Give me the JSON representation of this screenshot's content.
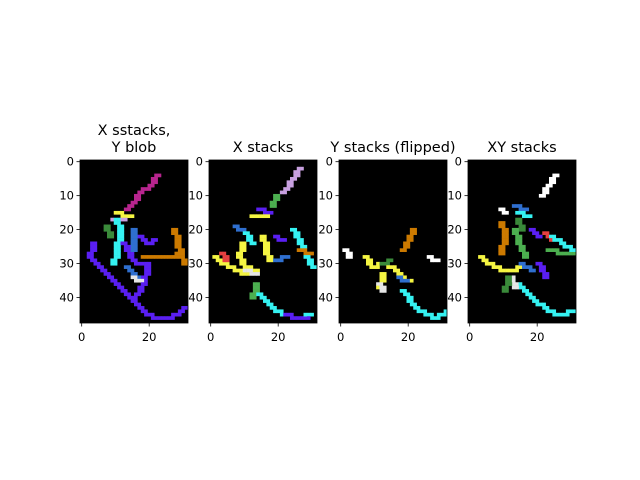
{
  "chart_data": [
    {
      "type": "heatmap",
      "title": "X sstacks,\nY blob",
      "rows": 48,
      "cols": 32,
      "xticks": [
        0,
        20
      ],
      "yticks": [
        0,
        10,
        20,
        30,
        40
      ],
      "background": "#000000",
      "strokes": [
        {
          "color": "#b8258f",
          "points": [
            [
              22,
              4
            ],
            [
              20,
              7
            ],
            [
              17,
              9
            ],
            [
              15,
              12
            ],
            [
              13,
              14
            ]
          ]
        },
        {
          "color": "#f5f542",
          "points": [
            [
              10,
              15
            ],
            [
              14,
              16
            ]
          ]
        },
        {
          "color": "#c8a0e0",
          "points": [
            [
              9,
              17
            ],
            [
              12,
              17
            ]
          ]
        },
        {
          "color": "#35f2f2",
          "points": [
            [
              10,
              17
            ],
            [
              11,
              21
            ],
            [
              10,
              26
            ],
            [
              9,
              30
            ]
          ]
        },
        {
          "color": "#3a8a3a",
          "points": [
            [
              7,
              19
            ],
            [
              8,
              22
            ]
          ]
        },
        {
          "color": "#5a1ff2",
          "points": [
            [
              3,
              24
            ],
            [
              2,
              28
            ],
            [
              6,
              32
            ],
            [
              10,
              36
            ],
            [
              14,
              40
            ],
            [
              18,
              44
            ],
            [
              22,
              46
            ],
            [
              26,
              46
            ],
            [
              30,
              43
            ]
          ]
        },
        {
          "color": "#5a1ff2",
          "points": [
            [
              12,
              24
            ],
            [
              14,
              28
            ],
            [
              16,
              30
            ],
            [
              19,
              30
            ],
            [
              18,
              36
            ],
            [
              15,
              40
            ]
          ]
        },
        {
          "color": "#5a1ff2",
          "points": [
            [
              17,
              22
            ],
            [
              19,
              24
            ],
            [
              21,
              23
            ]
          ]
        },
        {
          "color": "#2f6fcf",
          "points": [
            [
              15,
              20
            ],
            [
              15,
              26
            ]
          ]
        },
        {
          "color": "#2f6fcf",
          "points": [
            [
              13,
              31
            ],
            [
              15,
              33
            ],
            [
              16,
              34
            ]
          ]
        },
        {
          "color": "#cc7a00",
          "points": [
            [
              27,
              20
            ],
            [
              28,
              24
            ],
            [
              29,
              28
            ],
            [
              30,
              30
            ]
          ]
        },
        {
          "color": "#cc7a00",
          "points": [
            [
              18,
              28
            ],
            [
              25,
              28
            ],
            [
              29,
              27
            ]
          ]
        },
        {
          "color": "#e6e6e6",
          "points": [
            [
              15,
              34
            ],
            [
              17,
              35
            ]
          ]
        }
      ]
    },
    {
      "type": "heatmap",
      "title": "X stacks",
      "rows": 48,
      "cols": 32,
      "xticks": [
        0,
        20
      ],
      "yticks": [
        0,
        10,
        20,
        30,
        40
      ],
      "background": "#000000",
      "strokes": [
        {
          "color": "#c8a0e0",
          "points": [
            [
              26,
              2
            ],
            [
              24,
              5
            ],
            [
              21,
              9
            ]
          ]
        },
        {
          "color": "#4caf50",
          "points": [
            [
              19,
              10
            ],
            [
              18,
              13
            ]
          ]
        },
        {
          "color": "#5a1ff2",
          "points": [
            [
              14,
              14
            ],
            [
              17,
              15
            ]
          ]
        },
        {
          "color": "#f5f542",
          "points": [
            [
              12,
              16
            ],
            [
              16,
              16
            ]
          ]
        },
        {
          "color": "#2f6fcf",
          "points": [
            [
              7,
              19
            ],
            [
              9,
              20
            ]
          ]
        },
        {
          "color": "#35f2f2",
          "points": [
            [
              10,
              21
            ],
            [
              12,
              24
            ]
          ]
        },
        {
          "color": "#f5f542",
          "points": [
            [
              9,
              24
            ],
            [
              8,
              28
            ],
            [
              10,
              31
            ],
            [
              13,
              32
            ]
          ]
        },
        {
          "color": "#f5f542",
          "points": [
            [
              15,
              22
            ],
            [
              16,
              26
            ],
            [
              17,
              29
            ]
          ]
        },
        {
          "color": "#f5f542",
          "points": [
            [
              1,
              28
            ],
            [
              5,
              31
            ],
            [
              10,
              33
            ]
          ]
        },
        {
          "color": "#e64040",
          "points": [
            [
              3,
              27
            ],
            [
              4,
              29
            ]
          ]
        },
        {
          "color": "#5a1ff2",
          "points": [
            [
              19,
              22
            ],
            [
              21,
              23
            ]
          ]
        },
        {
          "color": "#35f2f2",
          "points": [
            [
              24,
              20
            ],
            [
              26,
              24
            ],
            [
              28,
              28
            ],
            [
              30,
              31
            ]
          ]
        },
        {
          "color": "#cc7a00",
          "points": [
            [
              26,
              26
            ],
            [
              29,
              27
            ]
          ]
        },
        {
          "color": "#4caf50",
          "points": [
            [
              13,
              36
            ],
            [
              12,
              40
            ]
          ]
        },
        {
          "color": "#35f2f2",
          "points": [
            [
              14,
              39
            ],
            [
              18,
              43
            ],
            [
              22,
              45
            ],
            [
              26,
              46
            ],
            [
              29,
              45
            ]
          ]
        },
        {
          "color": "#5a1ff2",
          "points": [
            [
              22,
              45
            ],
            [
              25,
              46
            ],
            [
              28,
              46
            ]
          ]
        },
        {
          "color": "#e6e6e6",
          "points": [
            [
              10,
              32
            ],
            [
              13,
              33
            ]
          ]
        },
        {
          "color": "#2f6fcf",
          "points": [
            [
              19,
              29
            ],
            [
              22,
              28
            ]
          ]
        }
      ]
    },
    {
      "type": "heatmap",
      "title": "Y stacks (flipped)",
      "rows": 48,
      "cols": 32,
      "xticks": [
        0,
        20
      ],
      "yticks": [
        0,
        10,
        20,
        30,
        40
      ],
      "background": "#000000",
      "strokes": [
        {
          "color": "#cc7a00",
          "points": [
            [
              21,
              20
            ],
            [
              20,
              23
            ],
            [
              18,
              26
            ]
          ]
        },
        {
          "color": "#ffffff",
          "points": [
            [
              1,
              26
            ],
            [
              2,
              28
            ]
          ]
        },
        {
          "color": "#ffffff",
          "points": [
            [
              26,
              28
            ],
            [
              28,
              29
            ]
          ]
        },
        {
          "color": "#f5f542",
          "points": [
            [
              7,
              28
            ],
            [
              9,
              31
            ],
            [
              12,
              30
            ],
            [
              15,
              31
            ]
          ]
        },
        {
          "color": "#3a8a3a",
          "points": [
            [
              12,
              30
            ],
            [
              14,
              29
            ]
          ]
        },
        {
          "color": "#f5f542",
          "points": [
            [
              16,
              32
            ],
            [
              18,
              34
            ],
            [
              20,
              35
            ]
          ]
        },
        {
          "color": "#2f6fcf",
          "points": [
            [
              17,
              34
            ],
            [
              19,
              35
            ]
          ]
        },
        {
          "color": "#f5f542",
          "points": [
            [
              12,
              33
            ],
            [
              11,
              37
            ]
          ]
        },
        {
          "color": "#35f2f2",
          "points": [
            [
              18,
              38
            ],
            [
              21,
              42
            ],
            [
              25,
              45
            ],
            [
              28,
              46
            ],
            [
              31,
              44
            ]
          ]
        },
        {
          "color": "#e6e6e6",
          "points": [
            [
              11,
              36
            ],
            [
              12,
              38
            ]
          ]
        }
      ]
    },
    {
      "type": "heatmap",
      "title": "XY stacks",
      "rows": 48,
      "cols": 32,
      "xticks": [
        0,
        20
      ],
      "yticks": [
        0,
        10,
        20,
        30,
        40
      ],
      "background": "#000000",
      "strokes": [
        {
          "color": "#ffffff",
          "points": [
            [
              25,
              4
            ],
            [
              23,
              7
            ],
            [
              21,
              10
            ]
          ]
        },
        {
          "color": "#ffffff",
          "points": [
            [
              9,
              14
            ],
            [
              10,
              15
            ]
          ]
        },
        {
          "color": "#2f6fcf",
          "points": [
            [
              13,
              13
            ],
            [
              16,
              14
            ]
          ]
        },
        {
          "color": "#35f2f2",
          "points": [
            [
              14,
              15
            ],
            [
              17,
              16
            ]
          ]
        },
        {
          "color": "#3a8a3a",
          "points": [
            [
              14,
              17
            ],
            [
              15,
              20
            ]
          ]
        },
        {
          "color": "#cc7a00",
          "points": [
            [
              9,
              18
            ],
            [
              10,
              22
            ],
            [
              9,
              27
            ]
          ]
        },
        {
          "color": "#4caf50",
          "points": [
            [
              13,
              20
            ],
            [
              14,
              24
            ],
            [
              16,
              28
            ]
          ]
        },
        {
          "color": "#5a1ff2",
          "points": [
            [
              18,
              20
            ],
            [
              20,
              22
            ]
          ]
        },
        {
          "color": "#e64040",
          "points": [
            [
              22,
              21
            ],
            [
              24,
              23
            ]
          ]
        },
        {
          "color": "#4caf50",
          "points": [
            [
              23,
              26
            ],
            [
              28,
              27
            ],
            [
              30,
              27
            ]
          ]
        },
        {
          "color": "#35f2f2",
          "points": [
            [
              24,
              22
            ],
            [
              27,
              24
            ],
            [
              30,
              26
            ]
          ]
        },
        {
          "color": "#f5f542",
          "points": [
            [
              3,
              28
            ],
            [
              7,
              31
            ],
            [
              11,
              32
            ],
            [
              15,
              31
            ]
          ]
        },
        {
          "color": "#2f6fcf",
          "points": [
            [
              15,
              30
            ],
            [
              18,
              32
            ]
          ]
        },
        {
          "color": "#5a1ff2",
          "points": [
            [
              20,
              30
            ],
            [
              22,
              34
            ]
          ]
        },
        {
          "color": "#35f2f2",
          "points": [
            [
              14,
              36
            ],
            [
              18,
              40
            ],
            [
              22,
              43
            ],
            [
              26,
              45
            ],
            [
              30,
              44
            ]
          ]
        },
        {
          "color": "#e6e6e6",
          "points": [
            [
              12,
              34
            ],
            [
              13,
              37
            ]
          ]
        },
        {
          "color": "#3a8a3a",
          "points": [
            [
              11,
              34
            ],
            [
              10,
              38
            ]
          ]
        }
      ]
    }
  ]
}
